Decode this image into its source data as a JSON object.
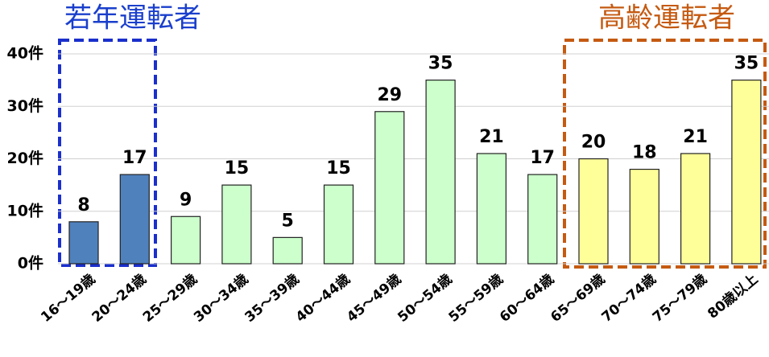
{
  "chart_data": {
    "type": "bar",
    "categories": [
      "16～19歳",
      "20～24歳",
      "25～29歳",
      "30～34歳",
      "35～39歳",
      "40～44歳",
      "45～49歳",
      "50～54歳",
      "55～59歳",
      "60～64歳",
      "65～69歳",
      "70～74歳",
      "75～79歳",
      "80歳以上"
    ],
    "values": [
      8,
      17,
      9,
      15,
      5,
      15,
      29,
      35,
      21,
      17,
      20,
      18,
      21,
      35
    ],
    "colors": [
      "#4f81bd",
      "#4f81bd",
      "#ccffcc",
      "#ccffcc",
      "#ccffcc",
      "#ccffcc",
      "#ccffcc",
      "#ccffcc",
      "#ccffcc",
      "#ccffcc",
      "#ffff99",
      "#ffff99",
      "#ffff99",
      "#ffff99"
    ],
    "ylim": [
      0,
      40
    ],
    "yticks": [
      {
        "value": 0,
        "label": "0件"
      },
      {
        "value": 10,
        "label": "10件"
      },
      {
        "value": 20,
        "label": "20件"
      },
      {
        "value": 30,
        "label": "30件"
      },
      {
        "value": 40,
        "label": "40件"
      }
    ],
    "grid": true,
    "annotations": [
      "若年運転者",
      "高齢運転者"
    ]
  }
}
